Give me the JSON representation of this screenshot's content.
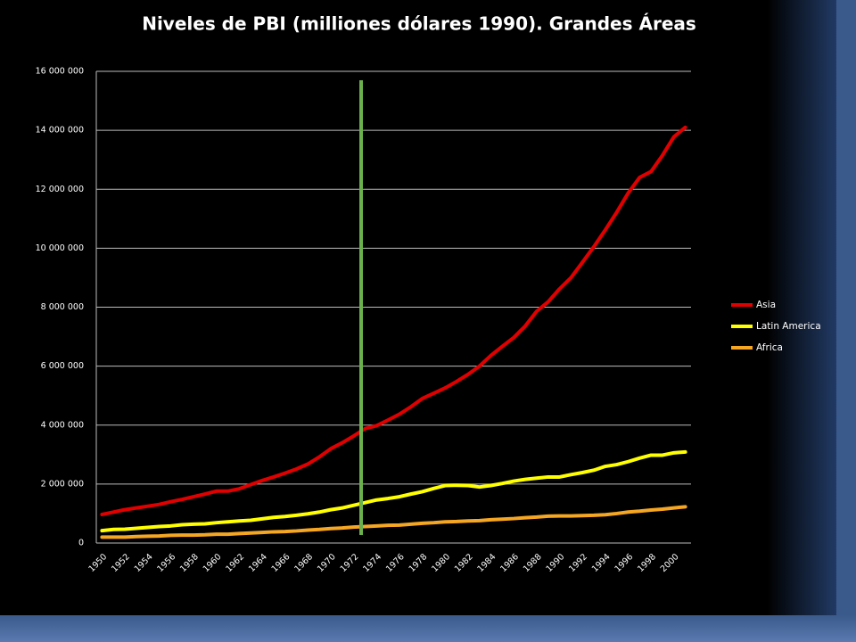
{
  "chart_data": {
    "type": "line",
    "title": "Niveles de PBI (milliones dólares 1990). Grandes Áreas",
    "categories": [
      "1950",
      null,
      "1952",
      null,
      "1954",
      null,
      "1956",
      null,
      "1958",
      null,
      "1960",
      null,
      "1962",
      null,
      "1964",
      null,
      "1966",
      null,
      "1968",
      null,
      "1970",
      null,
      "1972",
      null,
      "1974",
      null,
      "1976",
      null,
      "1978",
      null,
      "1980",
      null,
      "1982",
      null,
      "1984",
      null,
      "1986",
      null,
      "1988",
      null,
      "1990",
      null,
      "1992",
      null,
      "1994",
      null,
      "1996",
      null,
      "1998",
      null,
      "2000",
      null
    ],
    "series": [
      {
        "name": "Asia",
        "color": "#e00000",
        "values": [
          970000,
          1050000,
          1130000,
          1190000,
          1250000,
          1310000,
          1400000,
          1480000,
          1570000,
          1660000,
          1760000,
          1760000,
          1840000,
          1980000,
          2120000,
          2240000,
          2370000,
          2510000,
          2680000,
          2920000,
          3200000,
          3400000,
          3630000,
          3880000,
          3980000,
          4170000,
          4370000,
          4620000,
          4900000,
          5080000,
          5260000,
          5480000,
          5720000,
          6000000,
          6360000,
          6670000,
          6970000,
          7360000,
          7860000,
          8180000,
          8620000,
          9000000,
          9520000,
          10050000,
          10620000,
          11220000,
          11870000,
          12400000,
          12600000,
          13150000,
          13780000,
          14100000
        ]
      },
      {
        "name": "Latin America",
        "color": "#ffff00",
        "values": [
          420000,
          460000,
          470000,
          500000,
          530000,
          560000,
          580000,
          620000,
          640000,
          650000,
          690000,
          720000,
          750000,
          770000,
          820000,
          870000,
          900000,
          940000,
          990000,
          1050000,
          1130000,
          1190000,
          1280000,
          1370000,
          1460000,
          1510000,
          1570000,
          1660000,
          1740000,
          1850000,
          1950000,
          1960000,
          1950000,
          1900000,
          1950000,
          2020000,
          2100000,
          2160000,
          2200000,
          2240000,
          2240000,
          2320000,
          2390000,
          2470000,
          2600000,
          2660000,
          2760000,
          2880000,
          2980000,
          2980000,
          3060000,
          3090000
        ]
      },
      {
        "name": "Africa",
        "color": "#f5a623",
        "values": [
          200000,
          200000,
          200000,
          220000,
          230000,
          240000,
          260000,
          270000,
          270000,
          280000,
          300000,
          300000,
          320000,
          340000,
          360000,
          380000,
          390000,
          410000,
          440000,
          460000,
          490000,
          510000,
          540000,
          560000,
          580000,
          600000,
          610000,
          640000,
          670000,
          690000,
          720000,
          730000,
          750000,
          760000,
          790000,
          810000,
          830000,
          860000,
          880000,
          910000,
          920000,
          920000,
          930000,
          940000,
          960000,
          1000000,
          1050000,
          1080000,
          1120000,
          1150000,
          1190000,
          1230000
        ]
      }
    ],
    "ylim": [
      0,
      16000000
    ],
    "yticks": [
      0,
      {
        "value": 2000000,
        "label": "2 000 000"
      },
      {
        "value": 4000000,
        "label": "4 000 000"
      },
      {
        "value": 6000000,
        "label": "6 000 000"
      },
      {
        "value": 8000000,
        "label": "8 000 000"
      },
      {
        "value": 10000000,
        "label": "10 000 000"
      },
      {
        "value": 12000000,
        "label": "12 000 000"
      },
      {
        "value": 14000000,
        "label": "14 000 000"
      },
      {
        "value": 16000000,
        "label": "16 000 000"
      }
    ],
    "grid": true,
    "legend": "right"
  }
}
